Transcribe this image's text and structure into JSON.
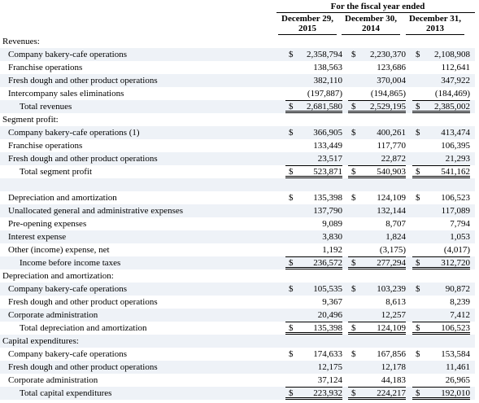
{
  "header": {
    "title": "For the fiscal year ended",
    "columns": [
      {
        "line1": "December 29,",
        "line2": "2015"
      },
      {
        "line1": "December 30,",
        "line2": "2014"
      },
      {
        "line1": "December 31,",
        "line2": "2013"
      }
    ]
  },
  "currency_symbol": "$",
  "sections": [
    {
      "title": "Revenues:",
      "rows": [
        {
          "label": "Company bakery-cafe operations",
          "kind": "item",
          "dollar": true,
          "values": [
            "2,358,794",
            "2,230,370",
            "2,108,908"
          ]
        },
        {
          "label": "Franchise operations",
          "kind": "item",
          "values": [
            "138,563",
            "123,686",
            "112,641"
          ]
        },
        {
          "label": "Fresh dough and other product operations",
          "kind": "item",
          "values": [
            "382,110",
            "370,004",
            "347,922"
          ]
        },
        {
          "label": "Intercompany sales eliminations",
          "kind": "item",
          "values": [
            "(197,887)",
            "(194,865)",
            "(184,469)"
          ]
        },
        {
          "label": "Total revenues",
          "kind": "total",
          "dollar": true,
          "values": [
            "2,681,580",
            "2,529,195",
            "2,385,002"
          ]
        }
      ]
    },
    {
      "title": "Segment profit:",
      "rows": [
        {
          "label": "Company bakery-cafe operations (1)",
          "kind": "item",
          "dollar": true,
          "values": [
            "366,905",
            "400,261",
            "413,474"
          ]
        },
        {
          "label": "Franchise operations",
          "kind": "item",
          "values": [
            "133,449",
            "117,770",
            "106,395"
          ]
        },
        {
          "label": "Fresh dough and other product operations",
          "kind": "item",
          "values": [
            "23,517",
            "22,872",
            "21,293"
          ]
        },
        {
          "label": "Total segment profit",
          "kind": "total",
          "dollar": true,
          "values": [
            "523,871",
            "540,903",
            "541,162"
          ]
        }
      ]
    },
    {
      "rows": [
        {
          "label": "Depreciation and amortization",
          "kind": "item",
          "dollar": true,
          "values": [
            "135,398",
            "124,109",
            "106,523"
          ]
        },
        {
          "label": "Unallocated general and administrative expenses",
          "kind": "item",
          "values": [
            "137,790",
            "132,144",
            "117,089"
          ]
        },
        {
          "label": "Pre-opening expenses",
          "kind": "item",
          "values": [
            "9,089",
            "8,707",
            "7,794"
          ]
        },
        {
          "label": "Interest expense",
          "kind": "item",
          "values": [
            "3,830",
            "1,824",
            "1,053"
          ]
        },
        {
          "label": "Other (income) expense, net",
          "kind": "item",
          "values": [
            "1,192",
            "(3,175)",
            "(4,017)"
          ]
        },
        {
          "label": "Income before income taxes",
          "kind": "total",
          "dollar": true,
          "values": [
            "236,572",
            "277,294",
            "312,720"
          ]
        }
      ]
    },
    {
      "title": "Depreciation and amortization:",
      "rows": [
        {
          "label": "Company bakery-cafe operations",
          "kind": "item",
          "dollar": true,
          "values": [
            "105,535",
            "103,239",
            "90,872"
          ]
        },
        {
          "label": "Fresh dough and other product operations",
          "kind": "item",
          "values": [
            "9,367",
            "8,613",
            "8,239"
          ]
        },
        {
          "label": "Corporate administration",
          "kind": "item",
          "values": [
            "20,496",
            "12,257",
            "7,412"
          ]
        },
        {
          "label": "Total depreciation and amortization",
          "kind": "total",
          "dollar": true,
          "values": [
            "135,398",
            "124,109",
            "106,523"
          ]
        }
      ]
    },
    {
      "title": "Capital expenditures:",
      "rows": [
        {
          "label": "Company bakery-cafe operations",
          "kind": "item",
          "dollar": true,
          "values": [
            "174,633",
            "167,856",
            "153,584"
          ]
        },
        {
          "label": "Fresh dough and other product operations",
          "kind": "item",
          "values": [
            "12,175",
            "12,178",
            "11,461"
          ]
        },
        {
          "label": "Corporate administration",
          "kind": "item",
          "values": [
            "37,124",
            "44,183",
            "26,965"
          ]
        },
        {
          "label": "Total capital expenditures",
          "kind": "total",
          "dollar": true,
          "values": [
            "223,932",
            "224,217",
            "192,010"
          ]
        }
      ]
    }
  ]
}
